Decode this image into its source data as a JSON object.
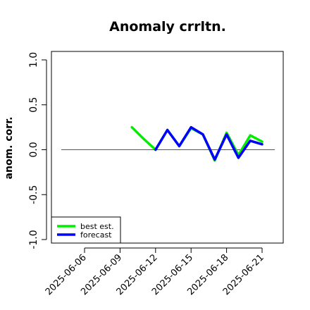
{
  "chart_data": {
    "type": "line",
    "title": "Anomaly crrltn.",
    "ylabel": "anom. corr.",
    "xlabel": "",
    "ylim": [
      -1.0,
      1.0
    ],
    "y_ticks": [
      -1.0,
      -0.5,
      0.0,
      0.5,
      1.0
    ],
    "y_tick_labels": [
      "-1.0",
      "-0.5",
      "0.0",
      "0.5",
      "1.0"
    ],
    "x_tick_labels": [
      "2025-06-06",
      "2025-06-09",
      "2025-06-12",
      "2025-06-15",
      "2025-06-18",
      "2025-06-21"
    ],
    "highlight_tick": "2025-06-12",
    "highlight_color": "#228B22",
    "reference_line": 0.0,
    "grid": false,
    "legend_position": "bottom-left",
    "series": [
      {
        "name": "best est.",
        "color": "#00ee00",
        "x": [
          "2025-06-10",
          "2025-06-11",
          "2025-06-12",
          "2025-06-13",
          "2025-06-14",
          "2025-06-15",
          "2025-06-16",
          "2025-06-17",
          "2025-06-18",
          "2025-06-19",
          "2025-06-20",
          "2025-06-21"
        ],
        "values": [
          0.25,
          0.12,
          0.0,
          0.22,
          0.04,
          0.24,
          0.17,
          -0.12,
          0.19,
          -0.06,
          0.16,
          0.09
        ]
      },
      {
        "name": "forecast",
        "color": "#0000ff",
        "x": [
          "2025-06-12",
          "2025-06-13",
          "2025-06-14",
          "2025-06-15",
          "2025-06-16",
          "2025-06-17",
          "2025-06-18",
          "2025-06-19",
          "2025-06-20",
          "2025-06-21"
        ],
        "values": [
          0.0,
          0.22,
          0.04,
          0.25,
          0.17,
          -0.11,
          0.17,
          -0.09,
          0.1,
          0.06
        ]
      }
    ]
  }
}
